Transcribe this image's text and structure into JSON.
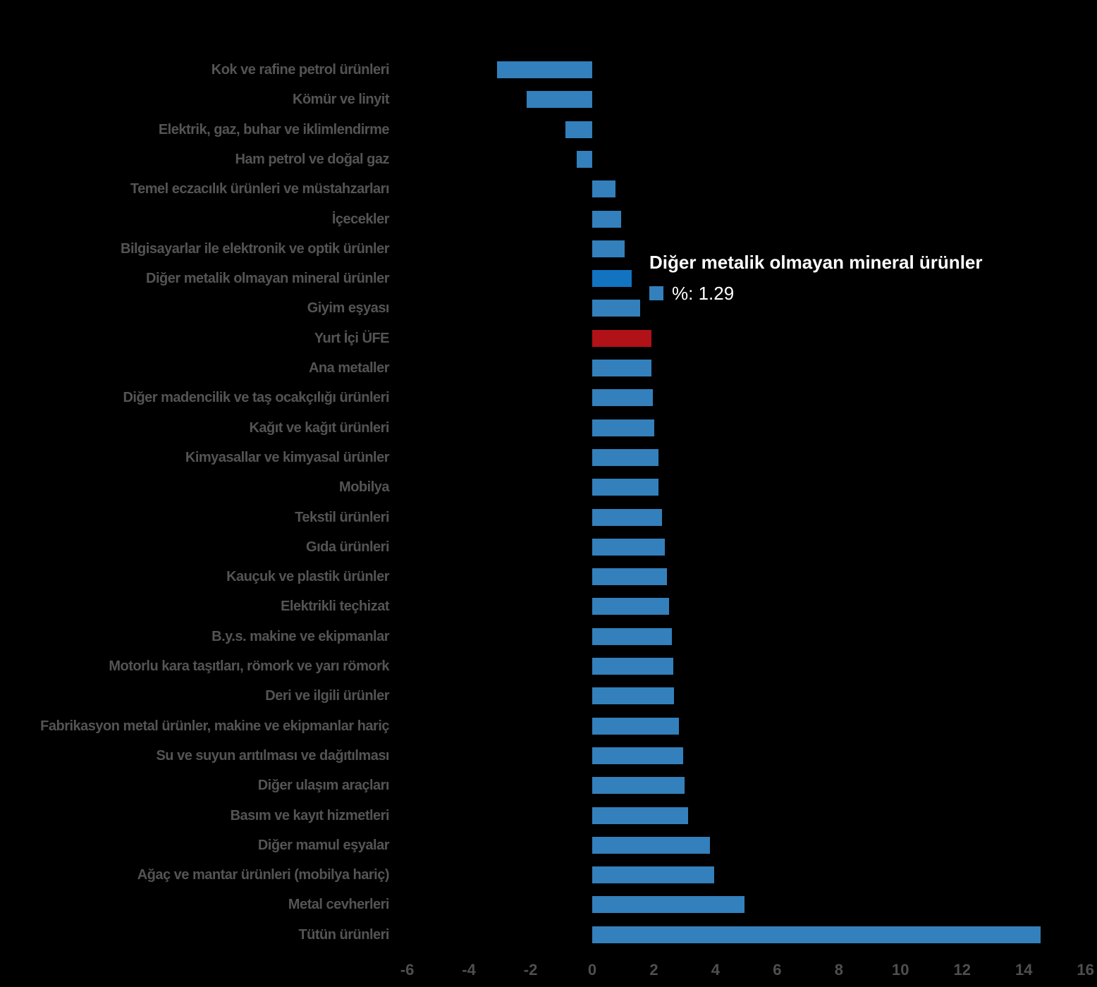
{
  "chart_data": {
    "type": "bar",
    "orientation": "horizontal",
    "title": "",
    "xlabel": "",
    "ylabel": "",
    "unit": "%",
    "grid": false,
    "legend": false,
    "xlim": [
      -8,
      16.4
    ],
    "x_ticks": [
      -6,
      -4,
      -2,
      0,
      2,
      4,
      6,
      8,
      10,
      12,
      14,
      16
    ],
    "categories": [
      "Kok ve rafine petrol ürünleri",
      "Kömür ve linyit",
      "Elektrik, gaz, buhar ve iklimlendirme",
      "Ham petrol ve doğal gaz",
      "Temel eczacılık ürünleri ve müstahzarları",
      "İçecekler",
      "Bilgisayarlar ile elektronik ve optik ürünler",
      "Diğer metalik olmayan mineral ürünler",
      "Giyim eşyası",
      "Yurt İçi ÜFE",
      "Ana metaller",
      "Diğer madencilik ve taş ocakçılığı ürünleri",
      "Kağıt ve kağıt ürünleri",
      "Kimyasallar ve kimyasal ürünler",
      "Mobilya",
      "Tekstil ürünleri",
      "Gıda ürünleri",
      "Kauçuk ve plastik ürünler",
      "Elektrikli teçhizat",
      "B.y.s. makine ve ekipmanlar",
      "Motorlu kara taşıtları, römork ve yarı römork",
      "Deri ve ilgili ürünler",
      "Fabrikasyon metal ürünler, makine ve ekipmanlar hariç",
      "Su ve suyun arıtılması ve dağıtılması",
      "Diğer ulaşım araçları",
      "Basım ve kayıt hizmetleri",
      "Diğer mamul eşyalar",
      "Ağaç ve mantar ürünleri (mobilya hariç)",
      "Metal cevherleri",
      "Tütün ürünleri"
    ],
    "values": [
      -3.08,
      -2.13,
      -0.88,
      -0.5,
      0.76,
      0.94,
      1.05,
      1.29,
      1.55,
      1.92,
      1.93,
      1.96,
      2.01,
      2.14,
      2.15,
      2.27,
      2.35,
      2.42,
      2.5,
      2.58,
      2.64,
      2.66,
      2.82,
      2.96,
      3.0,
      3.11,
      3.83,
      3.96,
      4.94,
      14.54
    ],
    "highlight_index": 7,
    "reference_index": 9,
    "colors": {
      "bar_default": "#3380bc",
      "bar_highlight": "#1273c1",
      "bar_reference": "#b01218",
      "label_text": "#545454",
      "tick_text": "#4f4f4f",
      "background": "#000000"
    }
  },
  "tooltip": {
    "title": "Diğer metalik olmayan mineral ürünler",
    "value_label": "%: 1.29",
    "swatch_color": "#3380bc",
    "text_color": "#ffffff"
  }
}
